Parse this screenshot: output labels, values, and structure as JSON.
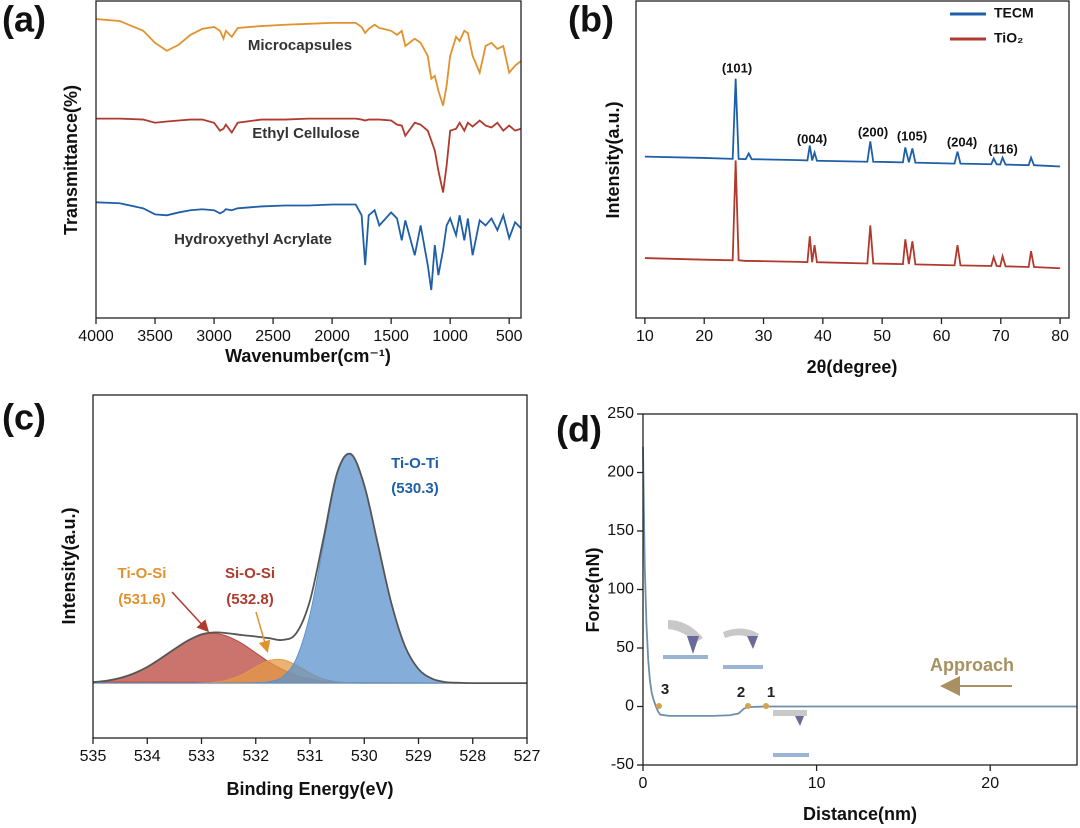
{
  "chart_data": [
    {
      "type": "line",
      "panel_label": "(a)",
      "x_label": "Wavenumber(cm⁻¹)",
      "y_label": "Transmittance(%)",
      "xlim": [
        4000,
        400
      ],
      "ylim": [
        0,
        100
      ],
      "xticks": [
        4000,
        3500,
        3000,
        2500,
        2000,
        1500,
        1000,
        500
      ],
      "x": [
        4000,
        3800,
        3600,
        3500,
        3400,
        3300,
        3200,
        3100,
        3000,
        2950,
        2920,
        2900,
        2850,
        2800,
        2600,
        2400,
        2200,
        2000,
        1800,
        1750,
        1720,
        1690,
        1640,
        1600,
        1500,
        1450,
        1410,
        1380,
        1300,
        1250,
        1190,
        1160,
        1130,
        1100,
        1060,
        1030,
        1000,
        950,
        920,
        880,
        850,
        810,
        750,
        700,
        650,
        600,
        550,
        500,
        450,
        400
      ],
      "series": [
        {
          "name": "Microcapsules",
          "color": "#e0922f",
          "values": [
            94.3,
            93.7,
            90.6,
            86.8,
            84.3,
            86.2,
            89.3,
            91.2,
            91.8,
            90.6,
            88.1,
            90.6,
            88.7,
            91.5,
            92.1,
            92.5,
            92.8,
            93.1,
            93.1,
            91.8,
            89.9,
            91.2,
            92.5,
            91.5,
            90.6,
            89.3,
            90.6,
            85.8,
            88.1,
            86.8,
            82.7,
            75.5,
            76.4,
            71.7,
            67.0,
            73.3,
            82.7,
            88.7,
            87.4,
            90.6,
            89.9,
            82.7,
            77.4,
            85.8,
            86.8,
            84.9,
            85.8,
            77.4,
            79.6,
            81.1
          ]
        },
        {
          "name": "Ethyl Cellulose",
          "color": "#b03a2e",
          "values": [
            62.9,
            62.9,
            62.6,
            61.6,
            62.0,
            62.3,
            62.6,
            62.6,
            61.6,
            59.1,
            59.7,
            61.0,
            58.5,
            61.6,
            62.6,
            62.6,
            62.9,
            62.9,
            62.9,
            62.6,
            62.3,
            62.6,
            62.6,
            62.6,
            62.3,
            61.0,
            60.7,
            57.5,
            61.6,
            61.0,
            59.1,
            56.0,
            52.8,
            46.5,
            39.6,
            48.1,
            59.1,
            59.7,
            61.6,
            59.1,
            61.6,
            60.4,
            62.3,
            60.7,
            60.1,
            61.6,
            59.1,
            60.7,
            59.1,
            59.7
          ]
        },
        {
          "name": "Hydroxyethyl Acrylate",
          "color": "#1f5fa8",
          "values": [
            36.5,
            36.2,
            34.6,
            32.7,
            32.4,
            33.3,
            34.0,
            34.3,
            34.0,
            33.0,
            33.6,
            34.3,
            34.0,
            34.6,
            35.2,
            35.5,
            35.5,
            35.8,
            35.8,
            32.4,
            16.7,
            32.4,
            34.0,
            29.2,
            33.3,
            31.4,
            24.5,
            30.8,
            19.8,
            29.2,
            16.7,
            8.8,
            23.0,
            13.5,
            21.4,
            29.2,
            31.4,
            26.1,
            32.4,
            24.5,
            31.4,
            19.8,
            30.8,
            29.2,
            31.4,
            27.7,
            32.4,
            25.2,
            30.2,
            28.3
          ]
        }
      ]
    },
    {
      "type": "line",
      "panel_label": "(b)",
      "x_label": "2θ(degree)",
      "y_label": "Intensity(a.u.)",
      "xlim": [
        8.5,
        81.5
      ],
      "ylim": [
        0,
        100
      ],
      "xticks": [
        10,
        20,
        30,
        40,
        50,
        60,
        70,
        80
      ],
      "legend": "upper right",
      "x": [
        10,
        20,
        24.8,
        25.3,
        25.8,
        27,
        27.5,
        28,
        36,
        37.4,
        37.8,
        38.2,
        38.6,
        39,
        47.5,
        48,
        48.5,
        53.5,
        53.9,
        54.5,
        55.1,
        55.6,
        62.2,
        62.7,
        63.2,
        68.4,
        68.8,
        69.3,
        69.9,
        70.3,
        70.8,
        74.7,
        75.1,
        75.6,
        80
      ],
      "series": [
        {
          "name": "TECM",
          "color": "#1f5fa8",
          "values": [
            50.9,
            50.5,
            50.2,
            75.5,
            50.2,
            50.1,
            51.9,
            50.1,
            49.8,
            49.7,
            54.4,
            49.7,
            52.2,
            49.6,
            49.3,
            55.7,
            49.3,
            49.1,
            53.8,
            49.1,
            53.5,
            49.0,
            48.7,
            52.5,
            48.7,
            48.5,
            50.3,
            48.5,
            48.4,
            50.6,
            48.4,
            48.2,
            50.6,
            48.2,
            47.8
          ]
        },
        {
          "name": "TiO₂",
          "color": "#b03a2e",
          "values": [
            18.9,
            18.4,
            18.2,
            49.7,
            18.2,
            18.0,
            18.0,
            18.0,
            17.7,
            17.6,
            25.8,
            17.6,
            23.0,
            17.6,
            17.2,
            29.2,
            17.2,
            17.0,
            24.8,
            17.0,
            24.2,
            16.9,
            16.6,
            23.0,
            16.6,
            16.4,
            19.2,
            16.4,
            16.3,
            19.5,
            16.3,
            16.1,
            21.1,
            16.1,
            15.7
          ]
        }
      ],
      "annotations": [
        {
          "text": "(101)"
        },
        {
          "text": "(004)"
        },
        {
          "text": "(200)"
        },
        {
          "text": "(105)"
        },
        {
          "text": "(204)"
        },
        {
          "text": "(116)"
        }
      ]
    },
    {
      "type": "area",
      "panel_label": "(c)",
      "x_label": "Binding Energy(eV)",
      "y_label": "Intensity(a.u.)",
      "xlim": [
        535,
        527
      ],
      "ylim": [
        0,
        100
      ],
      "xticks": [
        535,
        534,
        533,
        532,
        531,
        530,
        529,
        528,
        527
      ],
      "x": [
        535,
        534.75,
        534.5,
        534.25,
        534,
        533.75,
        533.5,
        533.25,
        533,
        532.75,
        532.5,
        532.25,
        532,
        531.75,
        531.5,
        531.25,
        531,
        530.75,
        530.5,
        530.25,
        530,
        529.75,
        529.5,
        529.25,
        529,
        528.75,
        528.5,
        528.25,
        528,
        527.75,
        527.5,
        527.25,
        527
      ],
      "series": [
        {
          "color": "#b8453c",
          "fill": true,
          "values": [
            16.3,
            16.7,
            17.5,
            18.8,
            20.7,
            23.2,
            25.9,
            28.4,
            30.1,
            30.5,
            29.5,
            27.5,
            24.8,
            22.1,
            19.9,
            18.2,
            17.2,
            16.5,
            16.2,
            16.1,
            16,
            16,
            16,
            16,
            16,
            16,
            16,
            16,
            16,
            16,
            16,
            16,
            16
          ]
        },
        {
          "color": "#e39a45",
          "fill": true,
          "values": [
            16,
            16,
            16,
            16,
            16,
            16,
            16,
            16,
            16.1,
            16.3,
            17,
            18.5,
            20.7,
            22.6,
            22.8,
            21.2,
            18.9,
            17.2,
            16.4,
            16.1,
            16,
            16,
            16,
            16,
            16,
            16,
            16,
            16,
            16,
            16,
            16,
            16,
            16
          ]
        },
        {
          "color": "#5b93cc",
          "fill": true,
          "values": [
            16,
            16,
            16,
            16,
            16,
            16,
            16,
            16,
            16,
            16,
            16,
            16,
            16.1,
            16.4,
            17.9,
            23.2,
            36,
            56.6,
            76.7,
            82.7,
            73.7,
            56.6,
            39.3,
            26.8,
            20.1,
            17.3,
            16.3,
            16.1,
            16,
            16,
            16,
            16,
            16
          ]
        },
        {
          "color": "#555555",
          "fill": false,
          "values": [
            16.3,
            16.7,
            17.5,
            18.8,
            20.7,
            23.2,
            25.9,
            28.4,
            30.2,
            30.8,
            30.5,
            30.0,
            29.6,
            29.1,
            28.6,
            30.6,
            40.1,
            58.3,
            77.3,
            82.8,
            73.7,
            56.6,
            39.3,
            26.8,
            20.1,
            17.3,
            16.3,
            16.1,
            16,
            16,
            16,
            16,
            16
          ]
        }
      ],
      "annotations": [
        {
          "text": "Ti-O-Ti",
          "color": "#1f5fa8"
        },
        {
          "text": "(530.3)",
          "color": "#1f5fa8"
        },
        {
          "text": "Ti-O-Si",
          "color": "#e0922f"
        },
        {
          "text": "(531.6)",
          "color": "#e0922f"
        },
        {
          "text": "Si-O-Si",
          "color": "#b03a2e"
        },
        {
          "text": "(532.8)",
          "color": "#b03a2e"
        }
      ]
    },
    {
      "type": "line",
      "panel_label": "(d)",
      "x_label": "Distance(nm)",
      "y_label": "Force(nN)",
      "xlim": [
        0,
        25
      ],
      "ylim": [
        -50,
        250
      ],
      "xticks": [
        0,
        10,
        20
      ],
      "yticks": [
        -50,
        0,
        50,
        100,
        150,
        200,
        250
      ],
      "x": [
        0,
        0.1,
        0.2,
        0.3,
        0.4,
        0.5,
        0.6,
        0.7,
        0.8,
        0.9,
        1,
        1.5,
        2,
        3,
        4,
        5,
        5.5,
        5.8,
        6,
        7,
        8,
        10,
        15,
        20,
        25
      ],
      "series": [
        {
          "color": "#6e8fa8",
          "values": [
            222,
            120,
            70,
            40,
            22,
            12,
            6,
            2,
            -2,
            -5,
            -7,
            -8,
            -8,
            -8,
            -8,
            -7.5,
            -6,
            -2,
            -0.5,
            0,
            0,
            0,
            0,
            0,
            0
          ]
        }
      ],
      "annotations": [
        {
          "text": "Approach",
          "color": "#a89060"
        },
        {
          "text": "3",
          "color": "#222222"
        },
        {
          "text": "2",
          "color": "#222222"
        },
        {
          "text": "1",
          "color": "#222222"
        }
      ]
    }
  ]
}
